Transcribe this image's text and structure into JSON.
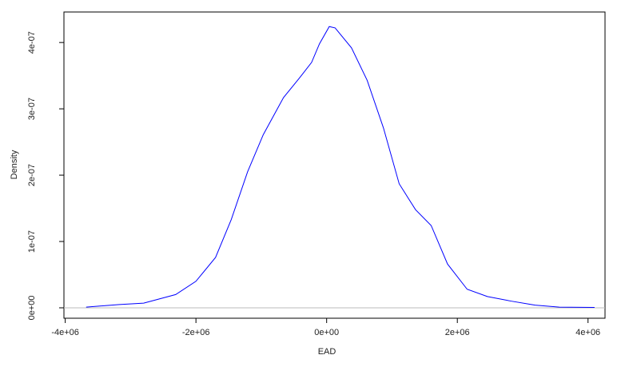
{
  "chart_data": {
    "type": "line",
    "x_label": "EAD",
    "y_label": "Density",
    "x": [
      -3680000,
      -3170000,
      -2800000,
      -2310000,
      -2000000,
      -1700000,
      -1460000,
      -1210000,
      -970000,
      -660000,
      -420000,
      -230000,
      -110000,
      40000,
      130000,
      380000,
      620000,
      870000,
      1110000,
      1360000,
      1600000,
      1850000,
      2150000,
      2460000,
      2830000,
      3190000,
      3560000,
      4100000
    ],
    "series": [
      {
        "color": "#0000ff",
        "values": [
          1e-09,
          5e-09,
          7e-09,
          2e-08,
          4e-08,
          7.6e-08,
          1.33e-07,
          2.05e-07,
          2.61e-07,
          3.17e-07,
          3.46e-07,
          3.7e-07,
          3.98e-07,
          4.24e-07,
          4.22e-07,
          3.92e-07,
          3.43e-07,
          2.71e-07,
          1.87e-07,
          1.48e-07,
          1.24e-07,
          6.6e-08,
          2.8e-08,
          1.7e-08,
          1e-08,
          4e-09,
          1e-09,
          5e-10
        ]
      }
    ],
    "xlim": [
      -4020000,
      4260000
    ],
    "ylim": [
      -1.57e-08,
      4.46e-07
    ],
    "xticks": [
      {
        "value": -4000000,
        "label": "-4e+06"
      },
      {
        "value": -2000000,
        "label": "-2e+06"
      },
      {
        "value": 0,
        "label": "0e+00"
      },
      {
        "value": 2000000,
        "label": "2e+06"
      },
      {
        "value": 4000000,
        "label": "4e+06"
      }
    ],
    "yticks": [
      {
        "value": 0,
        "label": "0e+00"
      },
      {
        "value": 1e-07,
        "label": "1e-07"
      },
      {
        "value": 2e-07,
        "label": "2e-07"
      },
      {
        "value": 3e-07,
        "label": "3e-07"
      },
      {
        "value": 4e-07,
        "label": "4e-07"
      }
    ],
    "zero_line": true
  }
}
